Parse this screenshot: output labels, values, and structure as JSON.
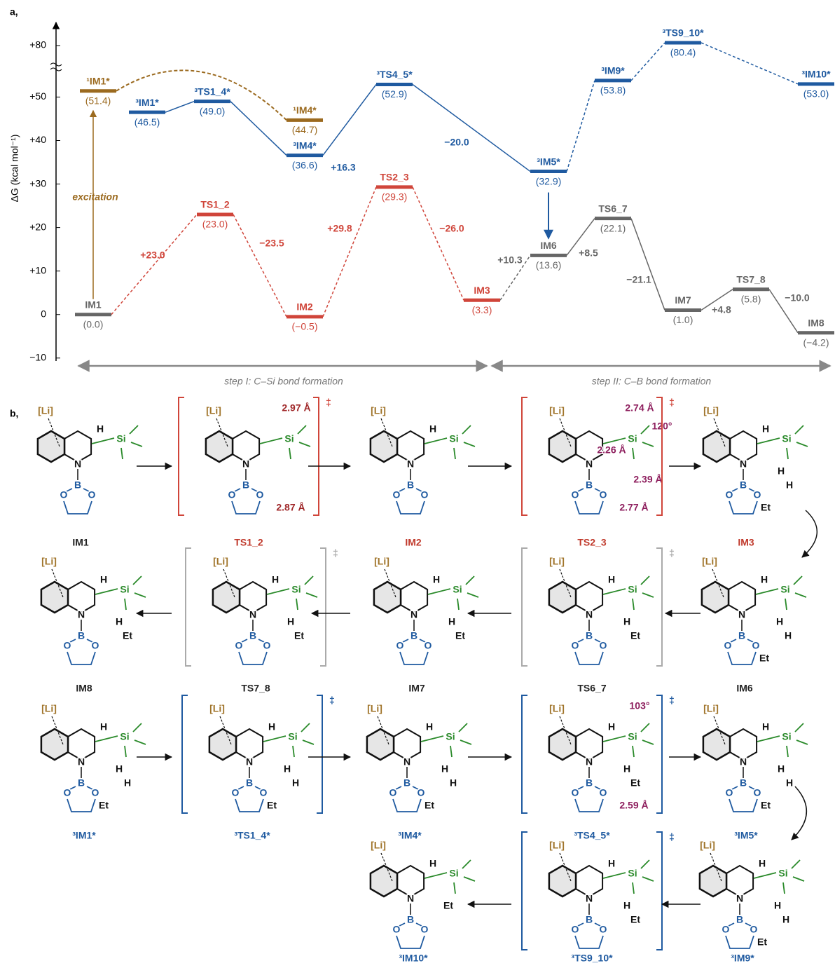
{
  "chart_data": {
    "type": "energy",
    "panel_label": "a,",
    "y_label": "ΔG (kcal mol⁻¹)",
    "ylim": [
      -11,
      84
    ],
    "axis_break": [
      57,
      78
    ],
    "yticks": [
      {
        "value": -10,
        "label": "−10"
      },
      0,
      {
        "value": 10,
        "label": "+10"
      },
      {
        "value": 20,
        "label": "+20"
      },
      {
        "value": 30,
        "label": "+30"
      },
      {
        "value": 40,
        "label": "+40"
      },
      {
        "value": 50,
        "label": "+50"
      },
      {
        "value": 80,
        "label": "+80"
      }
    ],
    "levels": [
      {
        "label": "IM1",
        "value": 0.0,
        "value_label": "(0.0)",
        "color": "#666666"
      },
      {
        "label": "¹IM1*",
        "value": 51.4,
        "value_label": "(51.4)",
        "color": "#9b6a1f"
      },
      {
        "label": "³IM1*",
        "value": 46.5,
        "value_label": "(46.5)",
        "color": "#1f5aa0"
      },
      {
        "label": "³TS1_4*",
        "value": 49.0,
        "value_label": "(49.0)",
        "color": "#1f5aa0"
      },
      {
        "label": "TS1_2",
        "value": 23.0,
        "value_label": "(23.0)",
        "color": "#d0453a"
      },
      {
        "label": "¹IM4*",
        "value": 44.7,
        "value_label": "(44.7)",
        "color": "#9b6a1f"
      },
      {
        "label": "³IM4*",
        "value": 36.6,
        "value_label": "(36.6)",
        "color": "#1f5aa0"
      },
      {
        "label": "IM2",
        "value": -0.5,
        "value_label": "(−0.5)",
        "color": "#d0453a"
      },
      {
        "label": "³TS4_5*",
        "value": 52.9,
        "value_label": "(52.9)",
        "color": "#1f5aa0"
      },
      {
        "label": "TS2_3",
        "value": 29.3,
        "value_label": "(29.3)",
        "color": "#d0453a"
      },
      {
        "label": "IM3",
        "value": 3.3,
        "value_label": "(3.3)",
        "color": "#d0453a"
      },
      {
        "label": "³IM5*",
        "value": 32.9,
        "value_label": "(32.9)",
        "color": "#1f5aa0"
      },
      {
        "label": "IM6",
        "value": 13.6,
        "value_label": "(13.6)",
        "color": "#666666"
      },
      {
        "label": "³IM9*",
        "value": 53.8,
        "value_label": "(53.8)",
        "color": "#1f5aa0"
      },
      {
        "label": "³TS9_10*",
        "value": 80.4,
        "value_label": "(80.4)",
        "color": "#1f5aa0"
      },
      {
        "label": "TS6_7",
        "value": 22.1,
        "value_label": "(22.1)",
        "color": "#666666"
      },
      {
        "label": "³IM10*",
        "value": 53.0,
        "value_label": "(53.0)",
        "color": "#1f5aa0"
      },
      {
        "label": "IM7",
        "value": 1.0,
        "value_label": "(1.0)",
        "color": "#666666"
      },
      {
        "label": "TS7_8",
        "value": 5.8,
        "value_label": "(5.8)",
        "color": "#666666"
      },
      {
        "label": "IM8",
        "value": -4.2,
        "value_label": "(−4.2)",
        "color": "#666666"
      }
    ],
    "annotations": [
      {
        "text": "+23.0",
        "color": "#d0453a"
      },
      {
        "text": "−23.5",
        "color": "#d0453a"
      },
      {
        "text": "+29.8",
        "color": "#d0453a"
      },
      {
        "text": "−26.0",
        "color": "#d0453a"
      },
      {
        "text": "+16.3",
        "color": "#1f5aa0"
      },
      {
        "text": "−20.0",
        "color": "#1f5aa0"
      },
      {
        "text": "+10.3",
        "color": "#666666"
      },
      {
        "text": "+8.5",
        "color": "#666666"
      },
      {
        "text": "−21.1",
        "color": "#666666"
      },
      {
        "text": "+4.8",
        "color": "#666666"
      },
      {
        "text": "−10.0",
        "color": "#666666"
      },
      {
        "text": "excitation",
        "color": "#9b6a1f"
      }
    ],
    "steps": [
      "step I: C–Si bond formation",
      "step II: C–B bond formation"
    ]
  },
  "panel_b": {
    "panel_label": "b,",
    "structures": [
      {
        "label": "IM1",
        "label_color": "#222222",
        "atoms": [
          "[Li]",
          "N",
          "B",
          "O",
          "O",
          "Si",
          "H"
        ]
      },
      {
        "label": "TS1_2",
        "label_color": "#c0392b",
        "atoms": [
          "[Li]",
          "N",
          "B",
          "O",
          "O",
          "Si"
        ],
        "bracket": "‡",
        "bracket_color": "#d0453a",
        "annotations": [
          "2.97 Å",
          "2.87 Å"
        ],
        "annotation_color": "#a0282a"
      },
      {
        "label": "IM2",
        "label_color": "#c0392b",
        "atoms": [
          "[Li]",
          "N",
          "B",
          "O",
          "O",
          "Si",
          "H"
        ]
      },
      {
        "label": "TS2_3",
        "label_color": "#c0392b",
        "atoms": [
          "[Li]",
          "N",
          "B",
          "O",
          "O",
          "Si"
        ],
        "bracket": "‡",
        "bracket_color": "#d0453a",
        "annotations": [
          "2.74 Å",
          "2.77 Å",
          "120°",
          "2.39 Å",
          "2.26 Å"
        ],
        "annotation_color": "#8e1f5e"
      },
      {
        "label": "IM3",
        "label_color": "#c0392b",
        "atoms": [
          "[Li]",
          "N",
          "B",
          "O",
          "O",
          "Si",
          "H",
          "H",
          "H",
          "Et"
        ]
      },
      {
        "label": "IM8",
        "label_color": "#222222",
        "atoms": [
          "[Li]",
          "N",
          "B",
          "O",
          "O",
          "Si",
          "H",
          "H",
          "Et"
        ]
      },
      {
        "label": "TS7_8",
        "label_color": "#222222",
        "atoms": [
          "[Li]",
          "N",
          "B",
          "O",
          "O",
          "Si",
          "H",
          "H",
          "Et"
        ],
        "bracket": "‡",
        "bracket_color": "#aaaaaa"
      },
      {
        "label": "IM7",
        "label_color": "#222222",
        "atoms": [
          "[Li]",
          "N",
          "B",
          "O",
          "O",
          "Si",
          "H",
          "H",
          "Et"
        ]
      },
      {
        "label": "TS6_7",
        "label_color": "#222222",
        "atoms": [
          "[Li]",
          "N",
          "B",
          "O",
          "O",
          "Si",
          "H",
          "H",
          "Et"
        ],
        "bracket": "‡",
        "bracket_color": "#aaaaaa"
      },
      {
        "label": "IM6",
        "label_color": "#222222",
        "atoms": [
          "[Li]",
          "N",
          "B",
          "O",
          "O",
          "Si",
          "H",
          "H",
          "H",
          "Et"
        ]
      },
      {
        "label": "³IM1*",
        "label_color": "#1f5aa0",
        "atoms": [
          "[Li]",
          "N",
          "B",
          "O",
          "O",
          "Si",
          "H",
          "H",
          "H",
          "Et"
        ]
      },
      {
        "label": "³TS1_4*",
        "label_color": "#1f5aa0",
        "atoms": [
          "[Li]",
          "N",
          "B",
          "O",
          "O",
          "Si",
          "H",
          "H",
          "H",
          "Et"
        ],
        "bracket": "‡",
        "bracket_color": "#1f5aa0"
      },
      {
        "label": "³IM4*",
        "label_color": "#1f5aa0",
        "atoms": [
          "[Li]",
          "N",
          "B",
          "O",
          "O",
          "Si",
          "H",
          "H",
          "H",
          "Et"
        ]
      },
      {
        "label": "³TS4_5*",
        "label_color": "#1f5aa0",
        "atoms": [
          "[Li]",
          "N",
          "B",
          "O",
          "O",
          "Si",
          "H",
          "H",
          "Et"
        ],
        "bracket": "‡",
        "bracket_color": "#1f5aa0",
        "annotations": [
          "103°",
          "2.59 Å"
        ],
        "annotation_color": "#8e1f5e"
      },
      {
        "label": "³IM5*",
        "label_color": "#1f5aa0",
        "atoms": [
          "[Li]",
          "N",
          "B",
          "O",
          "O",
          "Si",
          "H",
          "H",
          "H",
          "Et"
        ]
      },
      {
        "label": "³IM10*",
        "label_color": "#1f5aa0",
        "atoms": [
          "[Li]",
          "N",
          "B",
          "O",
          "O",
          "Si",
          "H",
          "Et"
        ]
      },
      {
        "label": "³TS9_10*",
        "label_color": "#1f5aa0",
        "atoms": [
          "[Li]",
          "N",
          "B",
          "O",
          "O",
          "Si",
          "H",
          "H",
          "Et"
        ],
        "bracket": "‡",
        "bracket_color": "#1f5aa0"
      },
      {
        "label": "³IM9*",
        "label_color": "#1f5aa0",
        "atoms": [
          "[Li]",
          "N",
          "B",
          "O",
          "O",
          "Si",
          "H",
          "H",
          "H",
          "Et"
        ]
      }
    ]
  }
}
